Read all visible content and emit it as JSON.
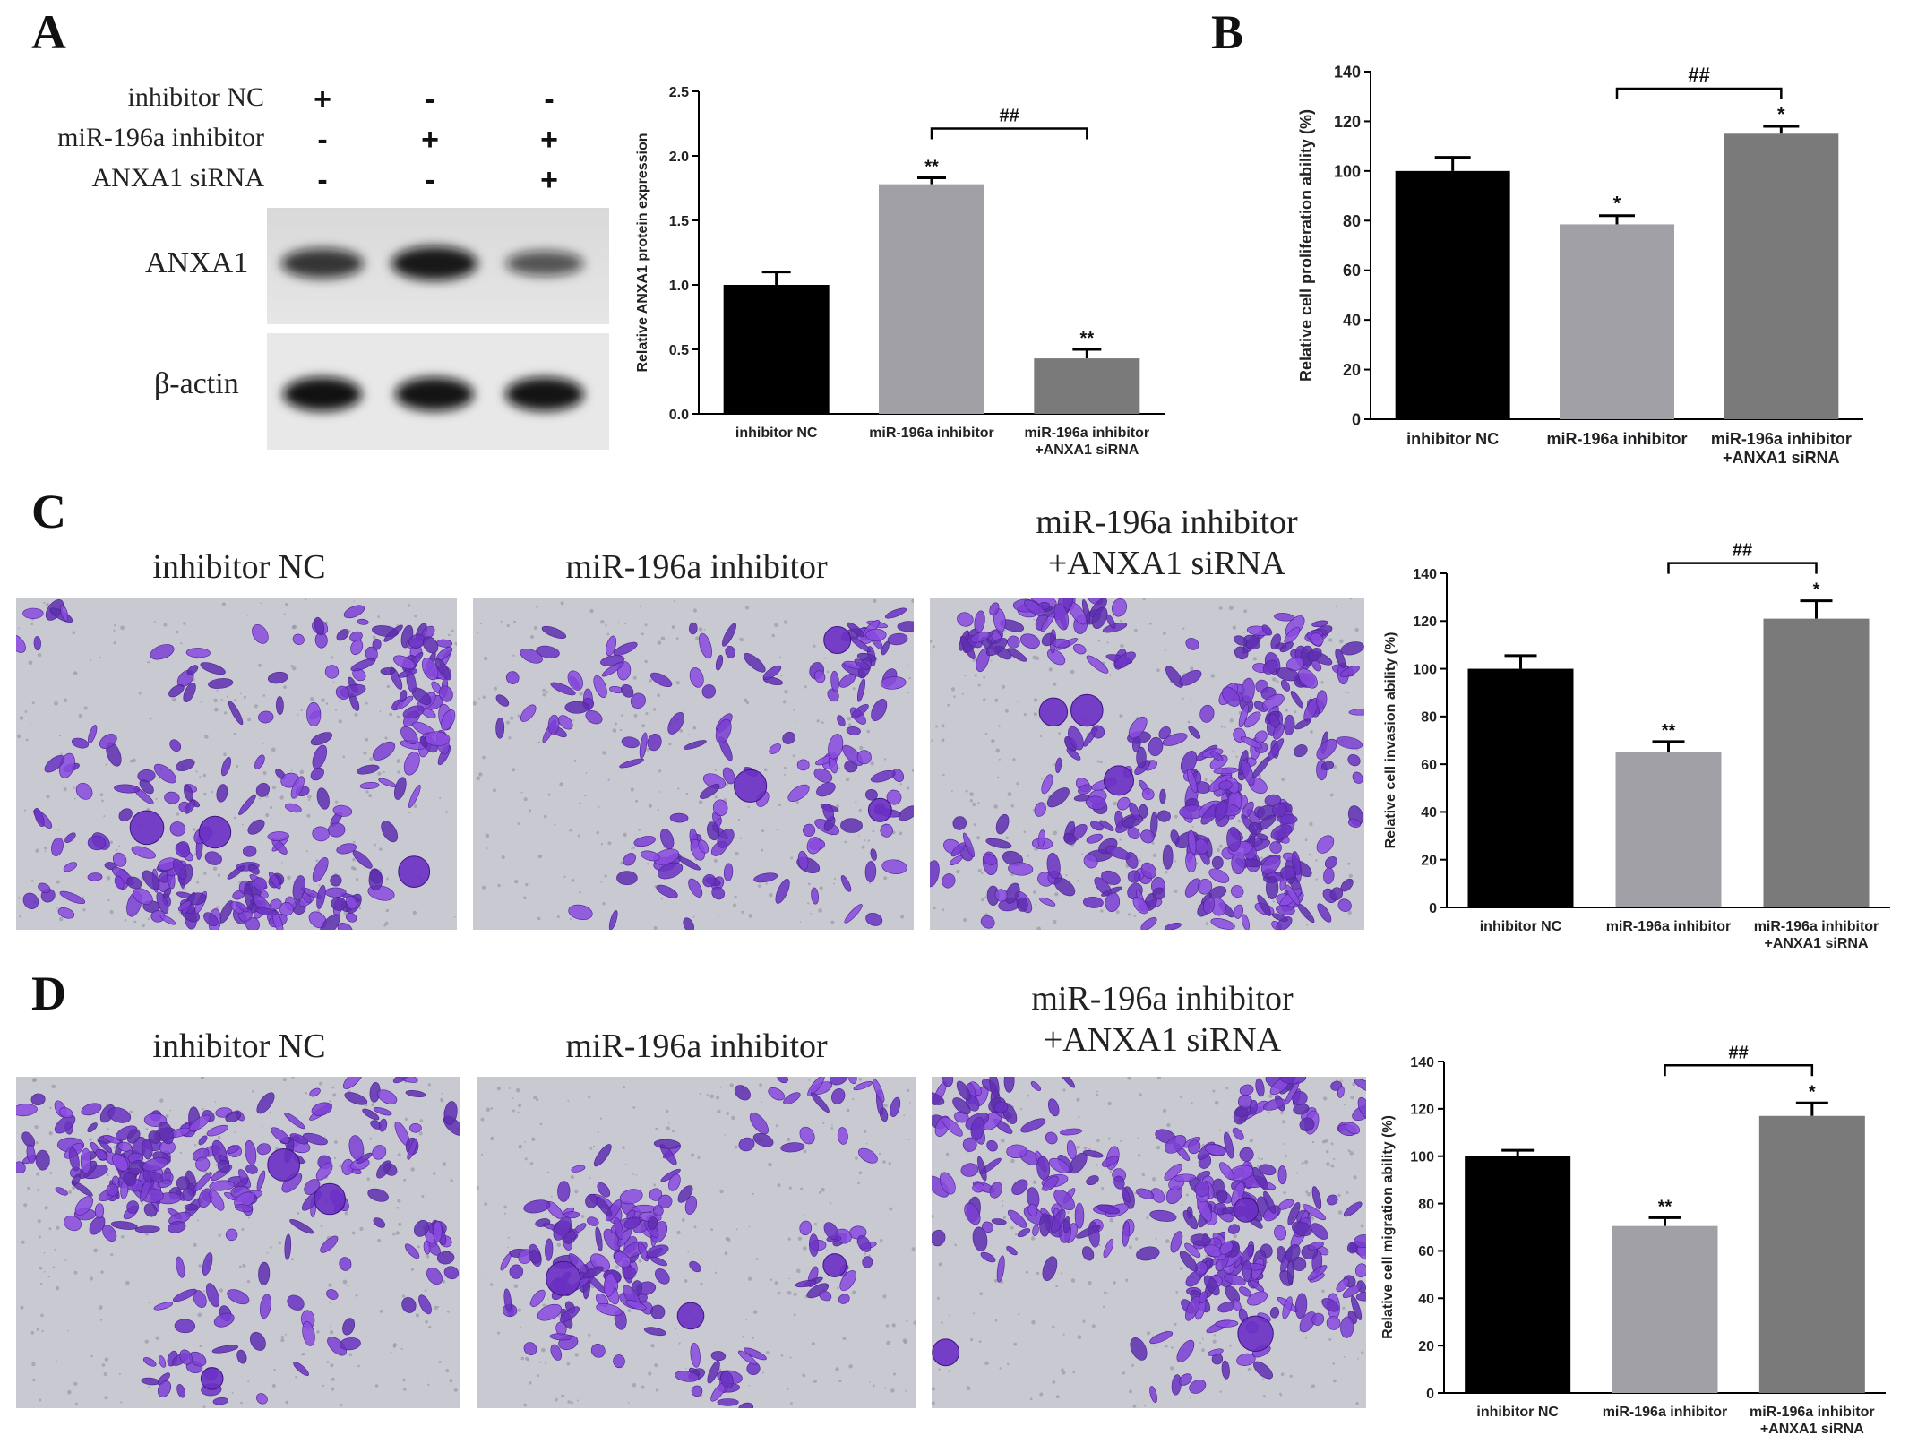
{
  "panels": {
    "A": {
      "letter": "A",
      "conditions": [
        {
          "label": "inhibitor NC",
          "signs": [
            "+",
            "-",
            "-"
          ]
        },
        {
          "label": "miR-196a inhibitor",
          "signs": [
            "-",
            "+",
            "+"
          ]
        },
        {
          "label": "ANXA1 siRNA",
          "signs": [
            "-",
            "-",
            "+"
          ]
        }
      ],
      "blot_labels": {
        "target": "ANXA1",
        "control": "β-actin"
      },
      "band_intensity": {
        "target": [
          0.75,
          1.0,
          0.45
        ],
        "control": [
          1.0,
          0.95,
          0.95
        ]
      }
    },
    "B": {
      "letter": "B"
    },
    "C": {
      "letter": "C",
      "photo_titles": [
        "inhibitor NC",
        "miR-196a inhibitor",
        "miR-196a inhibitor\n+ANXA1 siRNA"
      ]
    },
    "D": {
      "letter": "D",
      "photo_titles": [
        "inhibitor NC",
        "miR-196a inhibitor",
        "miR-196a inhibitor\n+ANXA1 siRNA"
      ]
    }
  },
  "colors": {
    "bar_black": "#000000",
    "bar_light_gray": "#a0a0a6",
    "bar_dark_gray": "#7a7a7a",
    "cell_purple": "#7a3fd0",
    "field_gray": "#c9c9d2"
  },
  "chart_data": [
    {
      "id": "A",
      "type": "bar",
      "categories": [
        "inhibitor NC",
        "miR-196a inhibitor",
        "miR-196a inhibitor\n+ANXA1 siRNA"
      ],
      "values": [
        1.0,
        1.78,
        0.43
      ],
      "errors": [
        0.1,
        0.05,
        0.07
      ],
      "significance": [
        "",
        "**",
        "**"
      ],
      "bracket": {
        "from": 1,
        "to": 2,
        "label": "##"
      },
      "ylabel": "Relative ANXA1 protein expression",
      "ylim": [
        0,
        2.5
      ],
      "yticks": [
        "0.0",
        "0.5",
        "1.0",
        "1.5",
        "2.0",
        "2.5"
      ]
    },
    {
      "id": "B",
      "type": "bar",
      "categories": [
        "inhibitor NC",
        "miR-196a inhibitor",
        "miR-196a inhibitor\n+ANXA1 siRNA"
      ],
      "values": [
        100,
        78.5,
        115
      ],
      "errors": [
        5.5,
        3.5,
        3
      ],
      "significance": [
        "",
        "*",
        "*"
      ],
      "bracket": {
        "from": 1,
        "to": 2,
        "label": "##"
      },
      "ylabel": "Relative cell proliferation ability (%)",
      "ylim": [
        0,
        140
      ],
      "yticks": [
        "0",
        "20",
        "40",
        "60",
        "80",
        "100",
        "120",
        "140"
      ]
    },
    {
      "id": "C",
      "type": "bar",
      "categories": [
        "inhibitor NC",
        "miR-196a inhibitor",
        "miR-196a inhibitor\n+ANXA1 siRNA"
      ],
      "values": [
        100,
        65,
        121
      ],
      "errors": [
        5.5,
        4.5,
        7.5
      ],
      "significance": [
        "",
        "**",
        "*"
      ],
      "bracket": {
        "from": 1,
        "to": 2,
        "label": "##"
      },
      "ylabel": "Relative cell invasion ability (%)",
      "ylim": [
        0,
        140
      ],
      "yticks": [
        "0",
        "20",
        "40",
        "60",
        "80",
        "100",
        "120",
        "140"
      ]
    },
    {
      "id": "D",
      "type": "bar",
      "categories": [
        "inhibitor NC",
        "miR-196a inhibitor",
        "miR-196a inhibitor\n+ANXA1 siRNA"
      ],
      "values": [
        100,
        70.5,
        117
      ],
      "errors": [
        2.5,
        3.5,
        5.5
      ],
      "significance": [
        "",
        "**",
        "*"
      ],
      "bracket": {
        "from": 1,
        "to": 2,
        "label": "##"
      },
      "ylabel": "Relative cell migration ability (%)",
      "ylim": [
        0,
        140
      ],
      "yticks": [
        "0",
        "20",
        "40",
        "60",
        "80",
        "100",
        "120",
        "140"
      ]
    }
  ]
}
